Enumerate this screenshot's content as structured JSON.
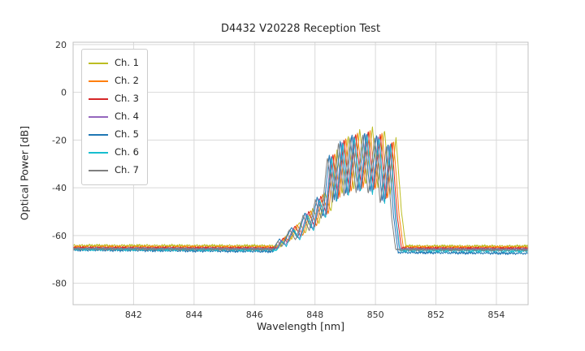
{
  "figure": {
    "background": "#ffffff",
    "grid_color": "#d9d9d9",
    "spine_color": "#c0c0c0"
  },
  "chart_data": {
    "type": "line",
    "title": "D4432 V20228 Reception Test",
    "xlabel": "Wavelength [nm]",
    "ylabel": "Optical Power [dB]",
    "xlim": [
      840.0,
      855.05
    ],
    "ylim": [
      -89,
      21
    ],
    "xticks": [
      842,
      844,
      846,
      848,
      850,
      852,
      854
    ],
    "yticks": [
      20,
      0,
      -20,
      -40,
      -60,
      -80
    ],
    "grid": true,
    "legend_position": "upper-left",
    "noise_db": 0.55,
    "profile": [
      [
        846.45,
        -90
      ],
      [
        846.7,
        -66
      ],
      [
        846.9,
        -61.5
      ],
      [
        847.05,
        -63.5
      ],
      [
        847.3,
        -56.5
      ],
      [
        847.5,
        -61
      ],
      [
        847.75,
        -50.5
      ],
      [
        847.95,
        -57
      ],
      [
        848.15,
        -44
      ],
      [
        848.35,
        -52
      ],
      [
        848.55,
        -26
      ],
      [
        848.72,
        -45
      ],
      [
        848.92,
        -20
      ],
      [
        849.1,
        -43
      ],
      [
        849.3,
        -17.5
      ],
      [
        849.5,
        -41
      ],
      [
        849.72,
        -16.5
      ],
      [
        849.9,
        -42
      ],
      [
        850.12,
        -17.5
      ],
      [
        850.3,
        -46
      ],
      [
        850.5,
        -21
      ],
      [
        850.68,
        -52
      ],
      [
        850.82,
        -66
      ],
      [
        850.95,
        -90
      ]
    ],
    "series": [
      {
        "name": "Ch. 1",
        "color": "#bcbd22",
        "dx": 0.18,
        "dy": 2.0,
        "floorL": -64.2,
        "floorR": -64.5
      },
      {
        "name": "Ch. 2",
        "color": "#ff7f0e",
        "dx": 0.1,
        "dy": 1.0,
        "floorL": -64.8,
        "floorR": -65.0
      },
      {
        "name": "Ch. 3",
        "color": "#d62728",
        "dx": 0.04,
        "dy": 0.5,
        "floorL": -65.2,
        "floorR": -65.4
      },
      {
        "name": "Ch. 4",
        "color": "#9467bd",
        "dx": -0.02,
        "dy": -0.5,
        "floorL": -65.5,
        "floorR": -65.8
      },
      {
        "name": "Ch. 5",
        "color": "#1f77b4",
        "dx": -0.08,
        "dy": 0.0,
        "floorL": -66.0,
        "floorR": -67.5
      },
      {
        "name": "Ch. 6",
        "color": "#17becf",
        "dx": 0.0,
        "dy": -1.0,
        "floorL": -65.8,
        "floorR": -66.5
      },
      {
        "name": "Ch. 7",
        "color": "#7f7f7f",
        "dx": -0.14,
        "dy": -1.0,
        "floorL": -65.6,
        "floorR": -66.0
      }
    ]
  }
}
